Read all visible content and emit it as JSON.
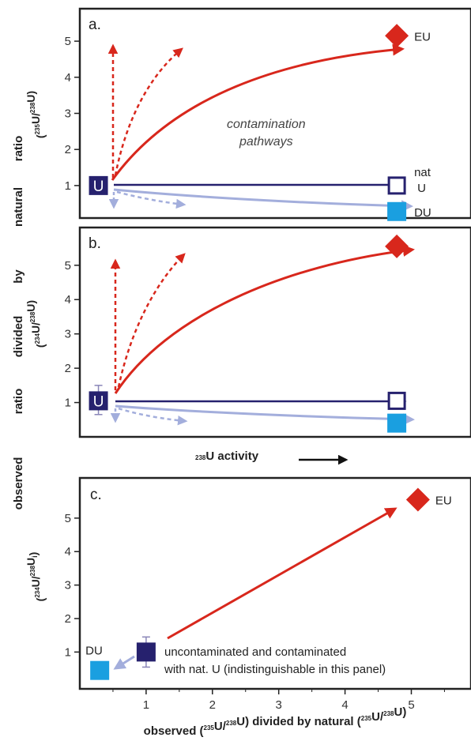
{
  "colors": {
    "red": "#d8271c",
    "navy": "#26216e",
    "lightblue": "#a3aedc",
    "cyan": "#1a9fe0",
    "axis": "#222222"
  },
  "side_label": [
    "observed",
    "ratio",
    "divided",
    "by",
    "natural",
    "ratio"
  ],
  "activity_label": "238U activity",
  "activity_label_parts": {
    "sup": "238",
    "text": "U activity"
  },
  "chart_data": [
    {
      "type": "scatter",
      "panel": "a.",
      "ylabel_parts": [
        {
          "t": "(",
          "sup": false
        },
        {
          "t": "235",
          "sup": true
        },
        {
          "t": "U/",
          "sup": false
        },
        {
          "t": "238",
          "sup": true
        },
        {
          "t": "U)",
          "sup": false
        }
      ],
      "ylim": [
        0.1,
        5.9
      ],
      "yticks": [
        1,
        2,
        3,
        4,
        5
      ],
      "xlabel": "238U activity",
      "points": [
        {
          "name": "U",
          "label": "U",
          "x": 0.04,
          "y": 1.0,
          "marker": "square-filled-label"
        },
        {
          "name": "nat U",
          "label": "nat",
          "label2": "U",
          "x": 0.9,
          "y": 1.0,
          "marker": "square-open"
        },
        {
          "name": "EU",
          "label": "EU",
          "x": 0.9,
          "y": 5.15,
          "marker": "diamond"
        },
        {
          "name": "DU",
          "label": "DU",
          "x": 0.9,
          "y": 0.28,
          "marker": "square-filled"
        }
      ],
      "annotation": [
        "contamination",
        "pathways"
      ]
    },
    {
      "type": "scatter",
      "panel": "b.",
      "ylabel_parts": [
        {
          "t": "(",
          "sup": false
        },
        {
          "t": "234",
          "sup": true
        },
        {
          "t": "U/",
          "sup": false
        },
        {
          "t": "238",
          "sup": true
        },
        {
          "t": "U)",
          "sup": false
        }
      ],
      "ylim": [
        0,
        6.1
      ],
      "yticks": [
        1,
        2,
        3,
        4,
        5
      ],
      "points": [
        {
          "name": "U",
          "label": "U",
          "x": 0.04,
          "y": 1.05,
          "marker": "square-filled-label",
          "err": [
            0.65,
            1.5
          ]
        },
        {
          "name": "nat U",
          "x": 0.9,
          "y": 1.05,
          "marker": "square-open"
        },
        {
          "name": "EU",
          "x": 0.9,
          "y": 5.55,
          "marker": "diamond"
        },
        {
          "name": "DU",
          "x": 0.9,
          "y": 0.4,
          "marker": "square-filled"
        }
      ]
    },
    {
      "type": "scatter",
      "panel": "c.",
      "ylabel_parts": [
        {
          "t": "(",
          "sup": false
        },
        {
          "t": "234",
          "sup": true
        },
        {
          "t": "U/",
          "sup": false
        },
        {
          "t": "238",
          "sup": true
        },
        {
          "t": "U",
          "sup": false
        },
        {
          "t": "i",
          "sup": false,
          "sub": true
        },
        {
          "t": ")",
          "sup": false
        }
      ],
      "xlabel_parts": [
        {
          "t": "observed (",
          "sup": false
        },
        {
          "t": "235",
          "sup": true
        },
        {
          "t": "U/",
          "sup": false
        },
        {
          "t": "238",
          "sup": true
        },
        {
          "t": "U) divided by natural (",
          "sup": false
        },
        {
          "t": "235",
          "sup": true
        },
        {
          "t": "U/",
          "sup": false
        },
        {
          "t": "238",
          "sup": true
        },
        {
          "t": "U)",
          "sup": false
        }
      ],
      "xlim": [
        0,
        5.9
      ],
      "ylim": [
        -0.1,
        6.2
      ],
      "xticks": [
        1,
        2,
        3,
        4,
        5
      ],
      "yticks": [
        1,
        2,
        3,
        4,
        5
      ],
      "points": [
        {
          "name": "nat U",
          "x": 1.0,
          "y": 1.0,
          "marker": "square-filled",
          "err": [
            0.55,
            1.45
          ]
        },
        {
          "name": "EU",
          "label": "EU",
          "x": 5.1,
          "y": 5.55,
          "marker": "diamond"
        },
        {
          "name": "DU",
          "label": "DU",
          "x": 0.3,
          "y": 0.45,
          "marker": "square-filled"
        }
      ],
      "note": [
        "uncontaminated and contaminated",
        "with nat. U (indistinguishable in this panel)"
      ]
    }
  ]
}
